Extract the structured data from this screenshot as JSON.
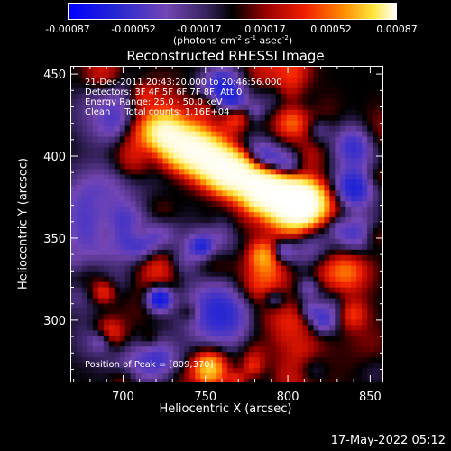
{
  "colorbar": {
    "labels": [
      "-0.00087",
      "-0.00052",
      "-0.00017",
      "0.00017",
      "0.00052",
      "0.00087"
    ],
    "units_prefix": "(photons cm",
    "units_exp1": "-2",
    "units_mid": " s",
    "units_exp2": "-1",
    "units_mid2": " asec",
    "units_exp3": "-2",
    "units_suffix": ")"
  },
  "info": {
    "time_range": "21-Dec-2011 20:43:20.000 to 20:46:56.000",
    "detectors": "Detectors: 3F 4F 5F 6F 7F 8F, Att 0",
    "energy": "Energy Range: 25.0 - 50.0 keV",
    "clean": "Clean     Total counts: 1.16E+04",
    "peak": "Position of Peak = [809,370]"
  },
  "timestamp": "17-May-2022 05:12",
  "chart_data": {
    "type": "heatmap",
    "title": "Reconstructed RHESSI Image",
    "xlabel": "Heliocentric X (arcsec)",
    "ylabel": "Heliocentric Y (arcsec)",
    "xlim": [
      668,
      858
    ],
    "ylim": [
      262,
      455
    ],
    "xticks": [
      700,
      750,
      800,
      850
    ],
    "yticks": [
      300,
      350,
      400,
      450
    ],
    "zlim": [
      -0.00087,
      0.00087
    ],
    "colorscale": "blue-purple-black-red-orange-yellow-white",
    "peak": [
      809,
      370
    ]
  }
}
